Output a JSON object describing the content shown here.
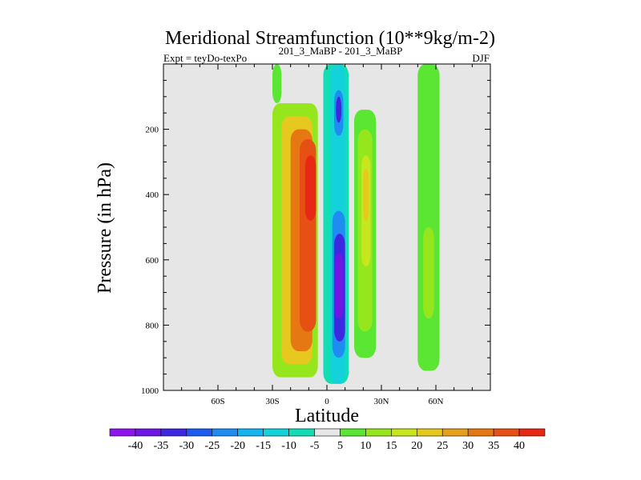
{
  "chart_data": {
    "type": "contour",
    "title": "Meridional Streamfunction (10**9kg/m-2)",
    "subtitle_left": "Expt = teyDo-texPo",
    "subtitle_center": "201_3_MaBP - 201_3_MaBP",
    "subtitle_right": "DJF",
    "xlabel": "Latitude",
    "ylabel": "Pressure (in hPa)",
    "xlim": [
      -90,
      90
    ],
    "ylim": [
      1000,
      0
    ],
    "x_ticks": [
      {
        "value": -60,
        "label": "60S"
      },
      {
        "value": -30,
        "label": "30S"
      },
      {
        "value": 0,
        "label": "0"
      },
      {
        "value": 30,
        "label": "30N"
      },
      {
        "value": 60,
        "label": "60N"
      }
    ],
    "y_ticks": [
      {
        "value": 200,
        "label": "200"
      },
      {
        "value": 400,
        "label": "400"
      },
      {
        "value": 600,
        "label": "600"
      },
      {
        "value": 800,
        "label": "800"
      },
      {
        "value": 1000,
        "label": "1000"
      }
    ],
    "levels": [
      -45,
      -40,
      -35,
      -30,
      -25,
      -20,
      -15,
      -10,
      -5,
      5,
      10,
      15,
      20,
      25,
      30,
      35,
      40,
      45
    ],
    "colorbar_labels": [
      "-40",
      "-35",
      "-30",
      "-25",
      "-20",
      "-15",
      "-10",
      "-5",
      "5",
      "10",
      "15",
      "20",
      "25",
      "30",
      "35",
      "40"
    ],
    "colors": [
      "#8c14ec",
      "#6f16e4",
      "#3c28e0",
      "#1e5af0",
      "#1e8cf0",
      "#14b4f0",
      "#14d2dc",
      "#14dcb4",
      "#e6e6e6",
      "#5ae632",
      "#96e61e",
      "#c8e61e",
      "#e6c81e",
      "#e6a01e",
      "#e67814",
      "#e65014",
      "#e62814"
    ],
    "background_color": "#e6e6e6",
    "cells": [
      {
        "lat": [
          -30,
          -5
        ],
        "p": [
          120,
          960
        ],
        "value": 12
      },
      {
        "lat": [
          -25,
          -8
        ],
        "p": [
          160,
          920
        ],
        "value": 22
      },
      {
        "lat": [
          -20,
          -8
        ],
        "p": [
          200,
          880
        ],
        "value": 30
      },
      {
        "lat": [
          -15,
          -6
        ],
        "p": [
          230,
          820
        ],
        "value": 37
      },
      {
        "lat": [
          -12,
          -6
        ],
        "p": [
          280,
          480
        ],
        "value": 42
      },
      {
        "lat": [
          -30,
          -25
        ],
        "p": [
          0,
          120
        ],
        "value": 6
      },
      {
        "lat": [
          -2,
          12
        ],
        "p": [
          0,
          980
        ],
        "value": -7
      },
      {
        "lat": [
          2,
          10
        ],
        "p": [
          0,
          980
        ],
        "value": -12
      },
      {
        "lat": [
          3,
          10
        ],
        "p": [
          450,
          900
        ],
        "value": -22
      },
      {
        "lat": [
          4,
          10
        ],
        "p": [
          520,
          850
        ],
        "value": -32
      },
      {
        "lat": [
          4,
          9
        ],
        "p": [
          580,
          780
        ],
        "value": -38
      },
      {
        "lat": [
          4,
          9
        ],
        "p": [
          80,
          220
        ],
        "value": -25
      },
      {
        "lat": [
          5,
          8
        ],
        "p": [
          100,
          180
        ],
        "value": -33
      },
      {
        "lat": [
          15,
          27
        ],
        "p": [
          140,
          900
        ],
        "value": 8
      },
      {
        "lat": [
          17,
          25
        ],
        "p": [
          200,
          820
        ],
        "value": 12
      },
      {
        "lat": [
          19,
          24
        ],
        "p": [
          280,
          620
        ],
        "value": 17
      },
      {
        "lat": [
          20,
          23
        ],
        "p": [
          320,
          480
        ],
        "value": 23
      },
      {
        "lat": [
          40,
          48
        ],
        "p": [
          40,
          120
        ],
        "value": -5
      },
      {
        "lat": [
          50,
          62
        ],
        "p": [
          0,
          940
        ],
        "value": 7
      },
      {
        "lat": [
          53,
          59
        ],
        "p": [
          500,
          780
        ],
        "value": 12
      }
    ]
  }
}
